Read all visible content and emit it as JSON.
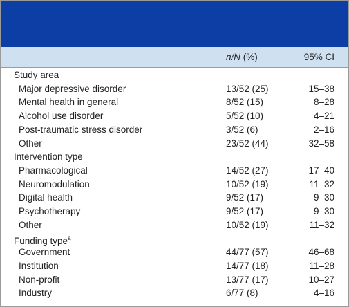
{
  "header": {
    "n_label": "n/N",
    "pct_label": "(%)",
    "ci_label": "95% CI"
  },
  "sections": [
    {
      "title": "Study area",
      "rows": [
        [
          "Major depressive disorder",
          "13/52 (25)",
          "15–38"
        ],
        [
          "Mental health in general",
          "8/52 (15)",
          "8–28"
        ],
        [
          "Alcohol use disorder",
          "5/52 (10)",
          "4–21"
        ],
        [
          "Post-traumatic stress disorder",
          "3/52 (6)",
          "2–16"
        ],
        [
          "Other",
          "23/52 (44)",
          "32–58"
        ]
      ]
    },
    {
      "title": "Intervention type",
      "rows": [
        [
          "Pharmacological",
          "14/52 (27)",
          "17–40"
        ],
        [
          "Neuromodulation",
          "10/52 (19)",
          "11–32"
        ],
        [
          "Digital health",
          "9/52 (17)",
          "9–30"
        ],
        [
          "Psychotherapy",
          "9/52 (17)",
          "9–30"
        ],
        [
          "Other",
          "10/52 (19)",
          "11–32"
        ]
      ]
    },
    {
      "title": "Funding type",
      "footnote": "a",
      "rows": [
        [
          "Government",
          "44/77 (57)",
          "46–68"
        ],
        [
          "Institution",
          "14/77 (18)",
          "11–28"
        ],
        [
          "Non-profit",
          "13/77 (17)",
          "10–27"
        ],
        [
          "Industry",
          "6/77 (8)",
          "4–16"
        ]
      ]
    }
  ]
}
